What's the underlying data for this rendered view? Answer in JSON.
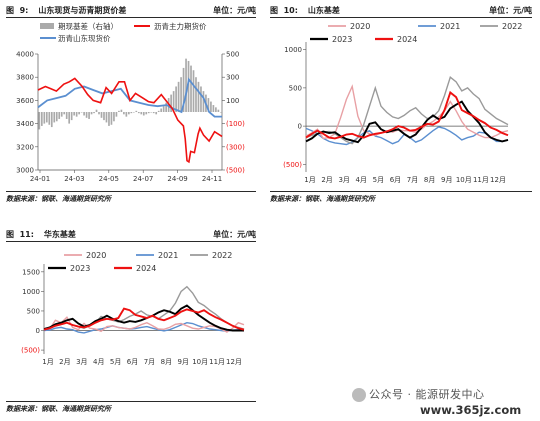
{
  "panels": [
    {
      "fig": "图  9:",
      "title": "山东现货与沥青期货价差",
      "unit": "单位：元/吨",
      "source": "数据来源：钢联、海通期货研究所",
      "legend": [
        "期现基差（右轴）",
        "沥青主力期货价",
        "沥青山东现货价"
      ]
    },
    {
      "fig": "图  10:",
      "title": "山东基差",
      "unit": "单位：元/吨",
      "source": "数据来源：钢联、海通期货研究所",
      "legend": [
        "2020",
        "2021",
        "2022",
        "2023",
        "2024"
      ]
    },
    {
      "fig": "图  11:",
      "title": "华东基差",
      "unit": "单位：元/吨",
      "source": "数据来源：钢联、海通期货研究所",
      "legend": [
        "2020",
        "2021",
        "2022",
        "2023",
        "2024"
      ]
    }
  ],
  "watermark": {
    "account": "公众号 · 能源研发中心",
    "site": "www.365jz.com"
  },
  "colors": {
    "2020": "#e8a0a4",
    "2021": "#5b8fd0",
    "2022": "#9a9a9a",
    "2023": "#000000",
    "2024": "#ee1111",
    "futures": "#ee1111",
    "spot": "#5b8fd0",
    "basis_bar": "#aaaaaa"
  },
  "chart_data": [
    {
      "type": "line",
      "title": "山东现货与沥青期货价差",
      "x_ticks": [
        "24-01",
        "24-03",
        "24-05",
        "24-07",
        "24-09",
        "24-11"
      ],
      "y_left": {
        "ticks": [
          "3000",
          "3200",
          "3400",
          "3600",
          "3800",
          "4000"
        ],
        "ylim": [
          3000,
          4000
        ]
      },
      "y_right": {
        "ticks": [
          "(500)",
          "(300)",
          "(100)",
          "100",
          "300",
          "500"
        ],
        "ylim": [
          -500,
          500
        ]
      },
      "series": [
        {
          "name": "沥青主力期货价",
          "axis": "left",
          "x": [
            0,
            0.04,
            0.07,
            0.1,
            0.14,
            0.17,
            0.2,
            0.24,
            0.27,
            0.3,
            0.34,
            0.37,
            0.4,
            0.44,
            0.47,
            0.5,
            0.53,
            0.57,
            0.6,
            0.63,
            0.67,
            0.7,
            0.73,
            0.76,
            0.79,
            0.8,
            0.81,
            0.82,
            0.83,
            0.85,
            0.87,
            0.88,
            0.9,
            0.93,
            0.96,
            1.0
          ],
          "values": [
            3690,
            3720,
            3700,
            3680,
            3740,
            3760,
            3790,
            3720,
            3650,
            3600,
            3580,
            3710,
            3660,
            3760,
            3760,
            3600,
            3660,
            3620,
            3590,
            3580,
            3650,
            3590,
            3530,
            3430,
            3380,
            3270,
            3080,
            3070,
            3160,
            3150,
            3310,
            3360,
            3300,
            3250,
            3330,
            3290
          ]
        },
        {
          "name": "沥青山东现货价",
          "axis": "left",
          "x": [
            0,
            0.05,
            0.1,
            0.15,
            0.2,
            0.25,
            0.3,
            0.35,
            0.4,
            0.45,
            0.5,
            0.55,
            0.6,
            0.65,
            0.7,
            0.72,
            0.75,
            0.78,
            0.8,
            0.82,
            0.85,
            0.87,
            0.9,
            0.93,
            0.96,
            1.0
          ],
          "values": [
            3540,
            3600,
            3620,
            3640,
            3700,
            3720,
            3690,
            3660,
            3680,
            3700,
            3600,
            3580,
            3560,
            3550,
            3560,
            3540,
            3520,
            3500,
            3620,
            3780,
            3720,
            3680,
            3620,
            3500,
            3460,
            3460
          ]
        },
        {
          "name": "期现基差（右轴）",
          "axis": "right",
          "kind": "bar",
          "values": [
            -150,
            -120,
            -100,
            -90,
            -110,
            -130,
            -90,
            -80,
            -60,
            -40,
            -20,
            -60,
            -100,
            -70,
            -30,
            -40,
            -20,
            0,
            -30,
            -50,
            -60,
            -20,
            -10,
            20,
            -20,
            -50,
            -70,
            -90,
            -120,
            -110,
            -80,
            -40,
            10,
            20,
            -20,
            -40,
            -20,
            -10,
            0,
            10,
            -10,
            -20,
            -30,
            -20,
            -10,
            0,
            -10,
            -20,
            10,
            30,
            50,
            80,
            120,
            150,
            180,
            220,
            260,
            300,
            380,
            460,
            440,
            400,
            360,
            300,
            260,
            220,
            180,
            150,
            120,
            90,
            60,
            40,
            20,
            0
          ]
        }
      ]
    },
    {
      "type": "line",
      "title": "山东基差",
      "x_ticks": [
        "1月",
        "2月",
        "3月",
        "4月",
        "5月",
        "6月",
        "7月",
        "8月",
        "9月",
        "10月",
        "11月",
        "12月"
      ],
      "y_ticks": [
        "(500)",
        "0",
        "500",
        "1000"
      ],
      "ylim": [
        -600,
        1100
      ],
      "series": [
        {
          "name": "2020",
          "values": [
            -130,
            -90,
            -40,
            -160,
            -150,
            -100,
            110,
            350,
            520,
            130,
            -60,
            -100,
            -120,
            -90,
            -60,
            -80,
            -50,
            -60,
            -60,
            -80,
            -40,
            20,
            60,
            120,
            200,
            320,
            200,
            60,
            -40,
            -80,
            -120,
            -150,
            -150,
            -120,
            -80,
            -60
          ]
        },
        {
          "name": "2021",
          "values": [
            -30,
            -60,
            -100,
            -160,
            -200,
            -220,
            -230,
            -240,
            -210,
            -150,
            -90,
            -60,
            -130,
            -150,
            -190,
            -230,
            -200,
            -110,
            -150,
            -210,
            -180,
            -120,
            -60,
            -10,
            -30,
            -70,
            -120,
            -180,
            -150,
            -130,
            -80,
            -90,
            -150,
            -200,
            -200,
            -180
          ]
        },
        {
          "name": "2022",
          "values": [
            -150,
            -120,
            -100,
            -80,
            -70,
            -100,
            -150,
            -200,
            -230,
            -150,
            20,
            260,
            500,
            260,
            180,
            120,
            100,
            140,
            200,
            240,
            160,
            100,
            120,
            200,
            400,
            640,
            580,
            460,
            500,
            420,
            360,
            220,
            160,
            100,
            60,
            20
          ]
        },
        {
          "name": "2023",
          "values": [
            -200,
            -160,
            -100,
            -70,
            -90,
            -80,
            -130,
            -170,
            -190,
            -210,
            -120,
            30,
            50,
            -40,
            -80,
            -60,
            -40,
            -100,
            -150,
            -110,
            -20,
            80,
            140,
            90,
            120,
            230,
            280,
            320,
            200,
            120,
            40,
            -80,
            -150,
            -180,
            -200,
            -180
          ]
        },
        {
          "name": "2024",
          "values": [
            -150,
            -100,
            -60,
            -100,
            -150,
            -160,
            -140,
            -110,
            -100,
            -130,
            -150,
            -120,
            -100,
            -90,
            -70,
            -40,
            0,
            -20,
            -60,
            -50,
            -10,
            30,
            20,
            60,
            210,
            440,
            380,
            210,
            170,
            130,
            80,
            40,
            -20,
            -50,
            -90,
            -120
          ]
        }
      ]
    },
    {
      "type": "line",
      "title": "华东基差",
      "x_ticks": [
        "1月",
        "2月",
        "3月",
        "4月",
        "5月",
        "6月",
        "7月",
        "8月",
        "9月",
        "10月",
        "11月",
        "12月"
      ],
      "y_ticks": [
        "(500)",
        "0",
        "500",
        "1000",
        "1500"
      ],
      "ylim": [
        -600,
        1700
      ],
      "series": [
        {
          "name": "2020",
          "values": [
            60,
            40,
            260,
            200,
            340,
            80,
            20,
            180,
            60,
            40,
            -20,
            100,
            120,
            80,
            60,
            40,
            80,
            150,
            200,
            120,
            40,
            30,
            80,
            160,
            180,
            120,
            60,
            40,
            80,
            120,
            100,
            40,
            -40,
            60,
            200,
            150
          ]
        },
        {
          "name": "2021",
          "values": [
            0,
            10,
            60,
            80,
            40,
            20,
            -40,
            -60,
            -20,
            20,
            40,
            80,
            120,
            80,
            60,
            40,
            50,
            80,
            100,
            60,
            20,
            -10,
            20,
            80,
            140,
            200,
            180,
            120,
            80,
            40,
            20,
            0,
            -20,
            10,
            20,
            10
          ]
        },
        {
          "name": "2022",
          "values": [
            40,
            80,
            120,
            160,
            200,
            140,
            100,
            60,
            120,
            200,
            360,
            300,
            260,
            220,
            280,
            360,
            420,
            500,
            400,
            360,
            300,
            400,
            500,
            700,
            1000,
            1120,
            960,
            720,
            640,
            520,
            420,
            300,
            200,
            120,
            80,
            40
          ]
        },
        {
          "name": "2023",
          "values": [
            40,
            80,
            160,
            200,
            260,
            300,
            180,
            100,
            140,
            240,
            300,
            380,
            300,
            240,
            200,
            240,
            220,
            260,
            320,
            380,
            460,
            520,
            480,
            420,
            560,
            640,
            520,
            400,
            300,
            200,
            120,
            60,
            20,
            0,
            0,
            0
          ]
        },
        {
          "name": "2024",
          "values": [
            20,
            60,
            120,
            160,
            200,
            140,
            100,
            80,
            120,
            200,
            260,
            300,
            280,
            320,
            560,
            520,
            400,
            360,
            320,
            380,
            300,
            260,
            320,
            380,
            480,
            540,
            500,
            460,
            520,
            420,
            340,
            280,
            200,
            120,
            60,
            20
          ]
        }
      ]
    }
  ]
}
